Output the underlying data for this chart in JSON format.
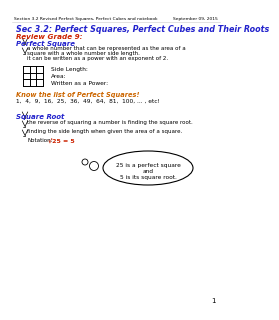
{
  "header_left": "Section 3.2 Revised Perfect Squares, Perfect Cubes and notebook",
  "header_right": "September 09, 2015",
  "title": "Sec 3.2: Perfect Squares, Perfect Cubes and Their Roots",
  "review_label": "Review Grade 9:",
  "perfect_square_label": "Perfect Square",
  "bullet1a": "a whole number that can be represented as the area of a",
  "bullet1b": "square with a whole number side length.",
  "bullet2": "it can be written as a power with an exponent of 2.",
  "side_length_label": "Side Length:",
  "area_label": "Area:",
  "power_label": "Written as a Power:",
  "know_list_label": "Know the list of Perfect Squares!",
  "perfect_squares": "1,  4,  9,  16,  25,  36,  49,  64,  81,  100, ... , etc!",
  "square_root_label": "Square Root",
  "sr_bullet1": "the reverse of squaring a number is finding the square root.",
  "sr_bullet2": "finding the side length when given the area of a square.",
  "sr_bullet3_prefix": "Notation:",
  "sr_notation": "√25 = 5",
  "bubble_text_1": "25 is a perfect square",
  "bubble_text_2": "and",
  "bubble_text_3": "5 is its square root.",
  "bg_color": "#ffffff",
  "header_color": "#000000",
  "title_color": "#2222cc",
  "review_color": "#cc2200",
  "section_color": "#2222cc",
  "know_list_color": "#cc6600",
  "notation_color": "#cc2200",
  "body_color": "#000000",
  "grid_color": "#000000",
  "page_num": "1"
}
